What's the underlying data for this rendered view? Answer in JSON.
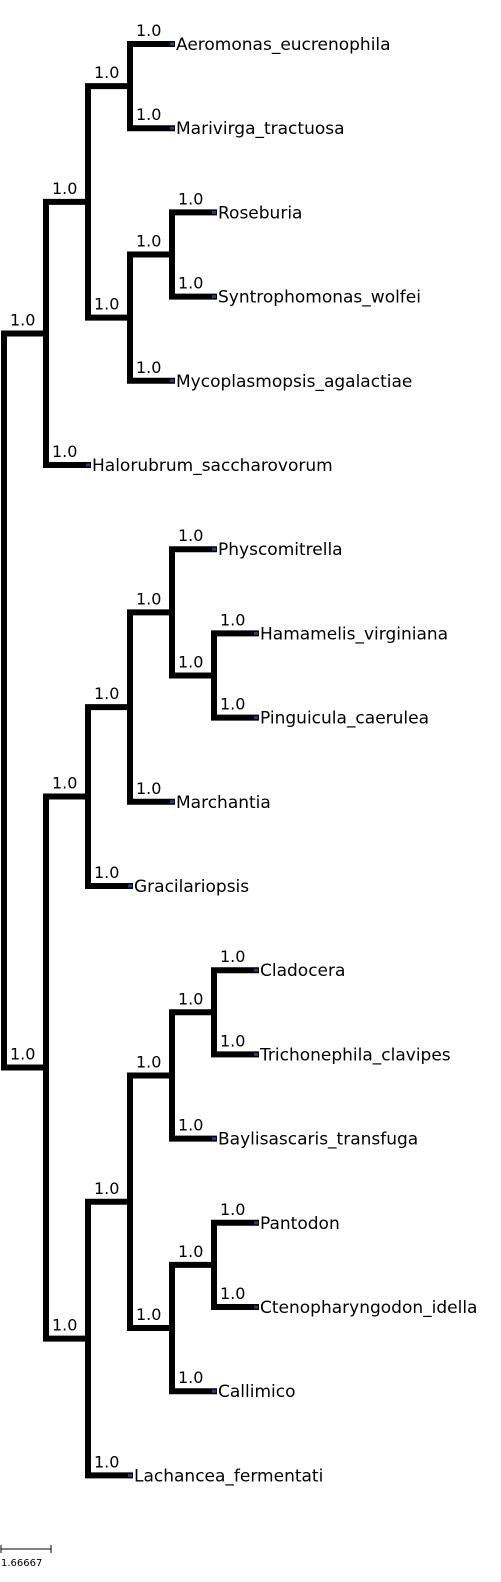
{
  "tree": {
    "branch_support_label": "1.0",
    "root": {
      "support": "",
      "children": [
        {
          "support": "1.0",
          "children": [
            {
              "support": "1.0",
              "children": [
                {
                  "support": "1.0",
                  "children": [
                    {
                      "support": "1.0",
                      "name": "Aeromonas_eucrenophila"
                    },
                    {
                      "support": "1.0",
                      "name": "Marivirga_tractuosa"
                    }
                  ]
                },
                {
                  "support": "1.0",
                  "children": [
                    {
                      "support": "1.0",
                      "children": [
                        {
                          "support": "1.0",
                          "name": "Roseburia"
                        },
                        {
                          "support": "1.0",
                          "name": "Syntrophomonas_wolfei"
                        }
                      ]
                    },
                    {
                      "support": "1.0",
                      "name": "Mycoplasmopsis_agalactiae"
                    }
                  ]
                }
              ]
            },
            {
              "support": "1.0",
              "name": "Halorubrum_saccharovorum"
            }
          ]
        },
        {
          "support": "1.0",
          "children": [
            {
              "support": "1.0",
              "children": [
                {
                  "support": "1.0",
                  "children": [
                    {
                      "support": "1.0",
                      "children": [
                        {
                          "support": "1.0",
                          "name": "Physcomitrella"
                        },
                        {
                          "support": "1.0",
                          "children": [
                            {
                              "support": "1.0",
                              "name": "Hamamelis_virginiana"
                            },
                            {
                              "support": "1.0",
                              "name": "Pinguicula_caerulea"
                            }
                          ]
                        }
                      ]
                    },
                    {
                      "support": "1.0",
                      "name": "Marchantia"
                    }
                  ]
                },
                {
                  "support": "1.0",
                  "name": "Gracilariopsis"
                }
              ]
            },
            {
              "support": "1.0",
              "children": [
                {
                  "support": "1.0",
                  "children": [
                    {
                      "support": "1.0",
                      "children": [
                        {
                          "support": "1.0",
                          "children": [
                            {
                              "support": "1.0",
                              "name": "Cladocera"
                            },
                            {
                              "support": "1.0",
                              "name": "Trichonephila_clavipes"
                            }
                          ]
                        },
                        {
                          "support": "1.0",
                          "name": "Baylisascaris_transfuga"
                        }
                      ]
                    },
                    {
                      "support": "1.0",
                      "children": [
                        {
                          "support": "1.0",
                          "children": [
                            {
                              "support": "1.0",
                              "name": "Pantodon"
                            },
                            {
                              "support": "1.0",
                              "name": "Ctenopharyngodon_idella"
                            }
                          ]
                        },
                        {
                          "support": "1.0",
                          "name": "Callimico"
                        }
                      ]
                    }
                  ]
                },
                {
                  "support": "1.0",
                  "name": "Lachancea_fermentati"
                }
              ]
            }
          ]
        }
      ]
    }
  },
  "scale": {
    "label": "1.66667"
  },
  "colors": {
    "branch": "#000000",
    "node": "#2b3a8c",
    "background": "#ffffff"
  }
}
